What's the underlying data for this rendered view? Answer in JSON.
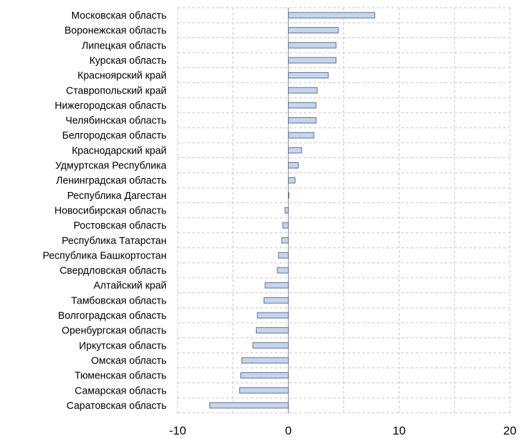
{
  "chart_data": {
    "type": "bar",
    "orientation": "horizontal",
    "categories": [
      "Московская область",
      "Воронежская область",
      "Липецкая область",
      "Курская область",
      "Красноярский край",
      "Ставропольский край",
      "Нижегородская область",
      "Челябинская область",
      "Белгородская область",
      "Краснодарский край",
      "Удмуртская Республика",
      "Ленинградская область",
      "Республика Дагестан",
      "Новосибирская область",
      "Ростовская область",
      "Республика Татарстан",
      "Республика Башкортостан",
      "Свердловская область",
      "Алтайский край",
      "Тамбовская область",
      "Волгоградская область",
      "Оренбургская область",
      "Иркутская область",
      "Омская область",
      "Тюменская область",
      "Самарская область",
      "Саратовская область"
    ],
    "values": [
      7.8,
      4.5,
      4.3,
      4.3,
      3.6,
      2.6,
      2.5,
      2.5,
      2.3,
      1.2,
      0.9,
      0.6,
      0.05,
      -0.3,
      -0.5,
      -0.6,
      -0.9,
      -1.0,
      -2.1,
      -2.2,
      -2.8,
      -2.9,
      -3.2,
      -4.2,
      -4.3,
      -4.4,
      -7.1
    ],
    "title": "",
    "xlabel": "",
    "ylabel": "",
    "xlim": [
      -10,
      20
    ],
    "xticks": [
      -10,
      0,
      10,
      20
    ],
    "xtick_labels": [
      "-10",
      "0",
      "10",
      "20"
    ],
    "grid": true,
    "grid_style": "dashed",
    "legend": "none",
    "colors": {
      "bar_fill": "#c5d5ea",
      "bar_stroke": "#5a6f94",
      "grid": "#c8c8c8",
      "zero_line": "#808080"
    }
  }
}
